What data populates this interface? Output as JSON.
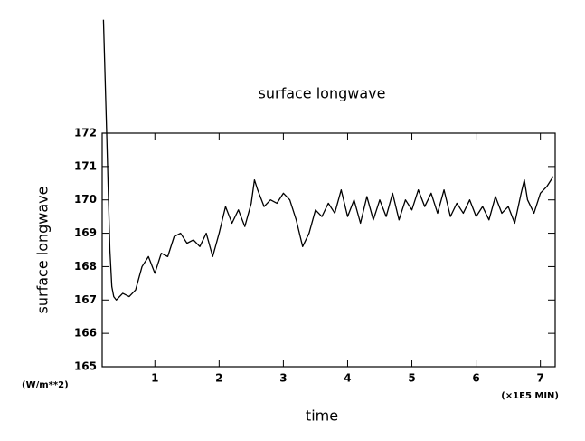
{
  "chart_data": {
    "type": "line",
    "title": "surface longwave",
    "y_label": "surface longwave",
    "x_label": "time",
    "y_unit": "(W/m**2)",
    "x_unit": "(×1E5 MIN)",
    "xlim": [
      0.18,
      7.23
    ],
    "ylim": [
      165,
      172
    ],
    "xticks": [
      1,
      2,
      3,
      4,
      5,
      6,
      7
    ],
    "yticks": [
      165,
      166,
      167,
      168,
      169,
      170,
      171,
      172
    ],
    "series": [
      {
        "color": "#000000",
        "x": [
          0.2,
          0.25,
          0.3,
          0.33,
          0.36,
          0.4,
          0.5,
          0.6,
          0.7,
          0.8,
          0.9,
          1.0,
          1.1,
          1.2,
          1.3,
          1.4,
          1.5,
          1.6,
          1.7,
          1.8,
          1.9,
          2.0,
          2.1,
          2.2,
          2.3,
          2.4,
          2.5,
          2.55,
          2.6,
          2.7,
          2.8,
          2.9,
          3.0,
          3.1,
          3.2,
          3.3,
          3.4,
          3.5,
          3.6,
          3.7,
          3.8,
          3.9,
          4.0,
          4.1,
          4.2,
          4.3,
          4.4,
          4.5,
          4.6,
          4.7,
          4.8,
          4.9,
          5.0,
          5.1,
          5.2,
          5.3,
          5.4,
          5.5,
          5.6,
          5.7,
          5.8,
          5.9,
          6.0,
          6.1,
          6.2,
          6.3,
          6.4,
          6.5,
          6.6,
          6.7,
          6.75,
          6.8,
          6.9,
          7.0,
          7.1,
          7.2
        ],
        "values": [
          175.4,
          172.0,
          168.5,
          167.4,
          167.1,
          167.0,
          167.2,
          167.1,
          167.3,
          168.0,
          168.3,
          167.8,
          168.4,
          168.3,
          168.9,
          169.0,
          168.7,
          168.8,
          168.6,
          169.0,
          168.3,
          169.0,
          169.8,
          169.3,
          169.7,
          169.2,
          169.9,
          170.6,
          170.3,
          169.8,
          170.0,
          169.9,
          170.2,
          170.0,
          169.4,
          168.6,
          169.0,
          169.7,
          169.5,
          169.9,
          169.6,
          170.3,
          169.5,
          170.0,
          169.3,
          170.1,
          169.4,
          170.0,
          169.5,
          170.2,
          169.4,
          170.0,
          169.7,
          170.3,
          169.8,
          170.2,
          169.6,
          170.3,
          169.5,
          169.9,
          169.6,
          170.0,
          169.5,
          169.8,
          169.4,
          170.1,
          169.6,
          169.8,
          169.3,
          170.2,
          170.6,
          170.0,
          169.6,
          170.2,
          170.4,
          170.7
        ]
      }
    ]
  }
}
